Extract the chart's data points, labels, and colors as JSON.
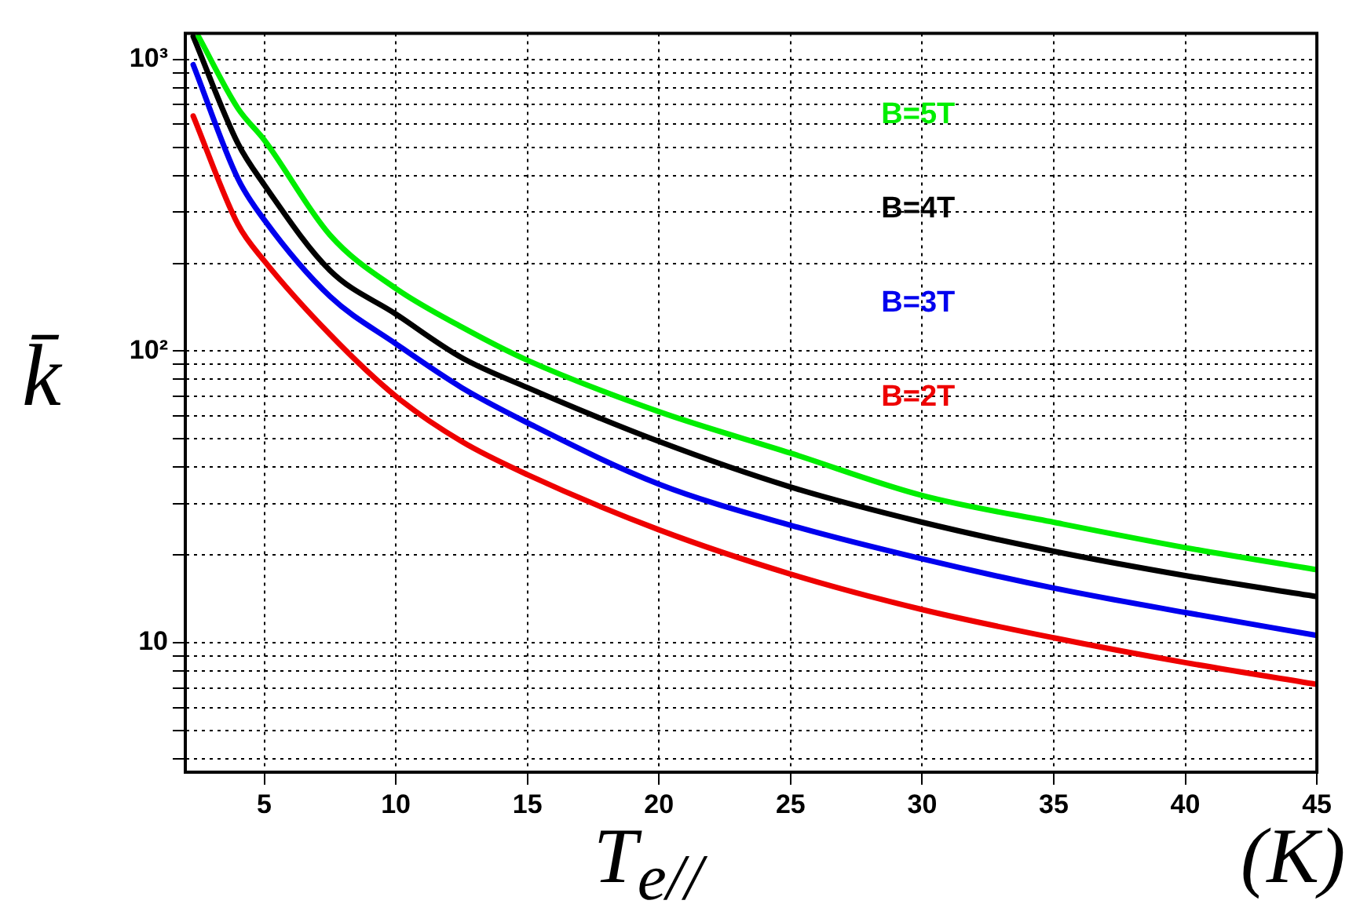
{
  "chart_data": {
    "type": "line",
    "xlabel": "T$_{e//}$ (K)",
    "ylabel": "k̄",
    "log": "y",
    "grid": true,
    "legend": false,
    "marker": "none",
    "line_style": "solid",
    "xlim": [
      2,
      45
    ],
    "xticks": [
      5,
      10,
      15,
      20,
      25,
      30,
      35,
      40,
      45
    ],
    "ylim": [
      3.6,
      1230
    ],
    "yticks": [
      {
        "value": 4,
        "label": null
      },
      {
        "value": 5,
        "label": null
      },
      {
        "value": 6,
        "label": null
      },
      {
        "value": 7,
        "label": null
      },
      {
        "value": 8,
        "label": null
      },
      {
        "value": 9,
        "label": null
      },
      10,
      {
        "value": 20,
        "label": null
      },
      {
        "value": 30,
        "label": null
      },
      {
        "value": 40,
        "label": null
      },
      {
        "value": 50,
        "label": null
      },
      {
        "value": 60,
        "label": null
      },
      {
        "value": 70,
        "label": null
      },
      {
        "value": 80,
        "label": null
      },
      {
        "value": 90,
        "label": null
      },
      {
        "value": 100,
        "label": "10²"
      },
      {
        "value": 200,
        "label": null
      },
      {
        "value": 300,
        "label": null
      },
      {
        "value": 400,
        "label": null
      },
      {
        "value": 500,
        "label": null
      },
      {
        "value": 600,
        "label": null
      },
      {
        "value": 700,
        "label": null
      },
      {
        "value": 800,
        "label": null
      },
      {
        "value": 900,
        "label": null
      },
      {
        "value": 1000,
        "label": "10³"
      }
    ],
    "series": [
      {
        "name": "B=5T",
        "color": "#00ee00",
        "x": [
          2.5,
          4,
          5,
          7.5,
          10,
          12.5,
          15,
          20,
          25,
          30,
          35,
          40,
          45
        ],
        "values": [
          1200,
          680,
          530,
          250,
          164,
          121,
          93,
          62,
          44.7,
          32,
          25.9,
          21.2,
          17.8
        ]
      },
      {
        "name": "B=4T",
        "color": "#000000",
        "x": [
          2.3,
          4,
          5,
          7.5,
          10,
          12.5,
          15,
          20,
          25,
          30,
          35,
          40,
          45
        ],
        "values": [
          1200,
          515,
          372,
          189,
          134,
          95,
          75,
          49,
          34.2,
          25.9,
          20.6,
          17,
          14.4
        ]
      },
      {
        "name": "B=3T",
        "color": "#0000ee",
        "x": [
          2.3,
          4,
          5,
          7.5,
          10,
          12.5,
          15,
          20,
          25,
          30,
          35,
          40,
          45
        ],
        "values": [
          960,
          390,
          282,
          154,
          106,
          75,
          56.8,
          35,
          25.3,
          19.4,
          15.4,
          12.7,
          10.6
        ]
      },
      {
        "name": "B=2T",
        "color": "#ee0000",
        "x": [
          2.3,
          4,
          5,
          7.5,
          10,
          12.5,
          15,
          20,
          25,
          30,
          35,
          40,
          45
        ],
        "values": [
          640,
          272,
          204,
          114,
          70,
          49,
          37.7,
          24.4,
          17.2,
          13,
          10.4,
          8.55,
          7.2
        ]
      }
    ]
  }
}
